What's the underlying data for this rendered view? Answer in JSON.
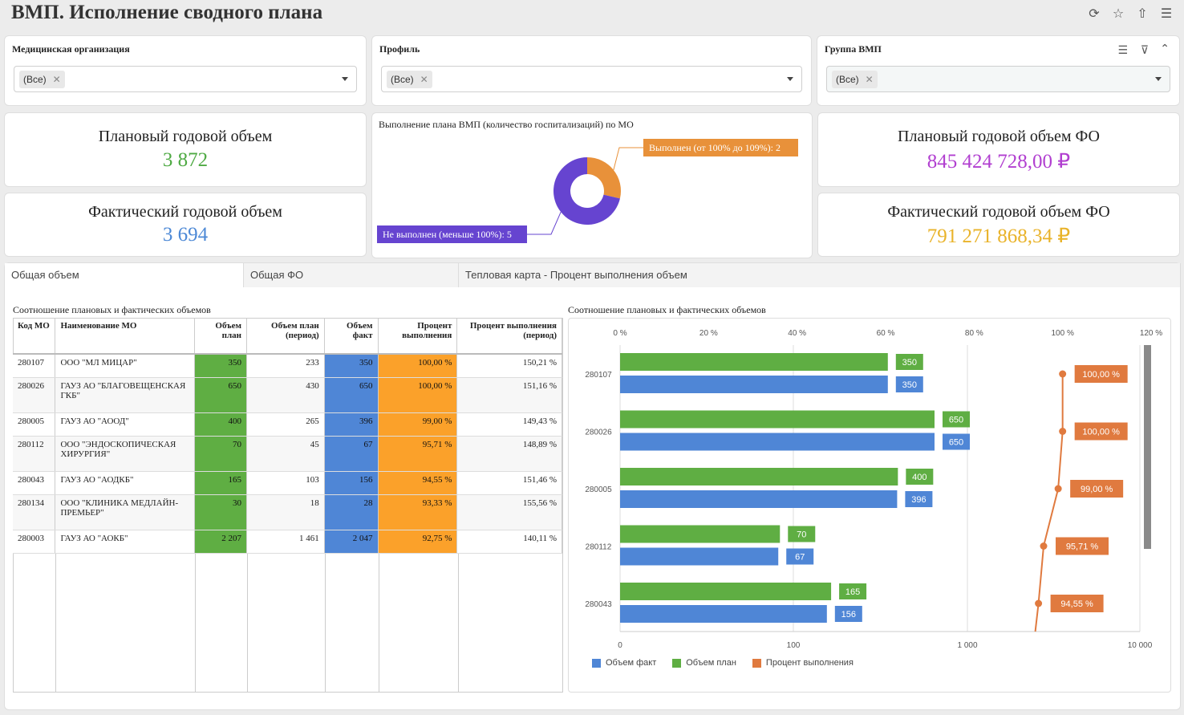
{
  "title": "ВМП. Исполнение сводного плана",
  "filters": [
    {
      "label": "Медицинская организация",
      "value": "(Все)"
    },
    {
      "label": "Профиль",
      "value": "(Все)"
    },
    {
      "label": "Группа ВМП",
      "value": "(Все)"
    }
  ],
  "kpi": {
    "plan_volume_label": "Плановый годовой объем",
    "plan_volume_value": "3 872",
    "fact_volume_label": "Фактический годовой объем",
    "fact_volume_value": "3 694",
    "plan_fo_label": "Плановый годовой объем ФО",
    "plan_fo_value": "845 424 728,00 ₽",
    "fact_fo_label": "Фактический годовой объем ФО",
    "fact_fo_value": "791 271 868,34 ₽"
  },
  "colors": {
    "green": "#5fae43",
    "blue": "#4f86d6",
    "orange": "#fba12a",
    "purple": "#6644d0",
    "donut_orange": "#e8913a",
    "pct_line": "#e07a3f",
    "fo_plan": "#b13fd0",
    "fo_fact": "#e9b32a",
    "volume_plan": "#4faa44",
    "volume_fact": "#4d89d6"
  },
  "donut": {
    "title": "Выполнение плана ВМП (количество госпитализаций) по МО",
    "segments": [
      {
        "label": "Выполнен (от 100% до 109%): 2",
        "value": 2,
        "color": "#e8913a"
      },
      {
        "label": "Не выполнен (меньше 100%): 5",
        "value": 5,
        "color": "#6644d0"
      }
    ]
  },
  "tabs": [
    "Общая объем",
    "Общая ФО",
    "Тепловая карта - Процент выполнения объем"
  ],
  "table": {
    "title": "Соотношение плановых и фактических объемов",
    "headers": [
      "Код МО",
      "Наименование МО",
      "Объем план",
      "Объем план (период)",
      "Объем факт",
      "Процент выполнения",
      "Процент выполнения (период)"
    ],
    "rows": [
      [
        "280107",
        "ООО \"МЛ МИЦАР\"",
        "350",
        "233",
        "350",
        "100,00 %",
        "150,21 %"
      ],
      [
        "280026",
        "ГАУЗ АО \"БЛАГОВЕЩЕНСКАЯ ГКБ\"",
        "650",
        "430",
        "650",
        "100,00 %",
        "151,16 %"
      ],
      [
        "280005",
        "ГАУЗ АО \"АООД\"",
        "400",
        "265",
        "396",
        "99,00 %",
        "149,43 %"
      ],
      [
        "280112",
        "ООО \"ЭНДОСКОПИЧЕСКАЯ ХИРУРГИЯ\"",
        "70",
        "45",
        "67",
        "95,71 %",
        "148,89 %"
      ],
      [
        "280043",
        "ГАУЗ АО \"АОДКБ\"",
        "165",
        "103",
        "156",
        "94,55 %",
        "151,46 %"
      ],
      [
        "280134",
        "ООО \"КЛИНИКА МЕДЛАЙН-ПРЕМЬЕР\"",
        "30",
        "18",
        "28",
        "93,33 %",
        "155,56 %"
      ],
      [
        "280003",
        "ГАУЗ АО \"АОКБ\"",
        "2 207",
        "1 461",
        "2 047",
        "92,75 %",
        "140,11 %"
      ]
    ]
  },
  "chart_data": {
    "type": "bar",
    "title": "Соотношение плановых и фактических объемов",
    "categories": [
      "280107",
      "280026",
      "280005",
      "280112",
      "280043"
    ],
    "series": [
      {
        "name": "Объем факт",
        "values": [
          350,
          650,
          396,
          67,
          156
        ],
        "color": "#4f86d6"
      },
      {
        "name": "Объем план",
        "values": [
          350,
          650,
          400,
          70,
          165
        ],
        "color": "#5fae43"
      },
      {
        "name": "Процент выполнения",
        "values": [
          100.0,
          100.0,
          99.0,
          95.71,
          94.55
        ],
        "labels": [
          "100,00 %",
          "100,00 %",
          "99,00 %",
          "95,71 %",
          "94,55 %"
        ],
        "color": "#e07a3f"
      }
    ],
    "x_scale": "log",
    "x_ticks": [
      "0",
      "100",
      "1 000",
      "10 000"
    ],
    "pct_ticks": [
      "0 %",
      "20 %",
      "40 %",
      "60 %",
      "80 %",
      "100 %",
      "120 %"
    ],
    "legend": "bottom-left"
  }
}
